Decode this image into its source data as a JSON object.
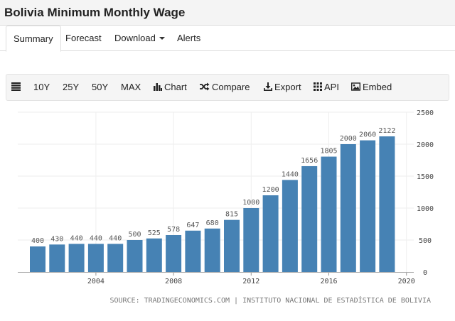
{
  "title": "Bolivia Minimum Monthly Wage",
  "tabs": [
    {
      "label": "Summary"
    },
    {
      "label": "Forecast"
    },
    {
      "label": "Download"
    },
    {
      "label": "Alerts"
    }
  ],
  "toolbar": {
    "range_10y": "10Y",
    "range_25y": "25Y",
    "range_50y": "50Y",
    "range_max": "MAX",
    "chart": "Chart",
    "compare": "Compare",
    "export": "Export",
    "api": "API",
    "embed": "Embed"
  },
  "source": "SOURCE: TRADINGECONOMICS.COM | INSTITUTO NACIONAL DE ESTADÍSTICA DE BOLIVIA",
  "colors": {
    "bar": "#4682b4",
    "accent": "#222222"
  },
  "chart_data": {
    "type": "bar",
    "title": "",
    "xlabel": "",
    "ylabel": "",
    "ylim": [
      0,
      2500
    ],
    "y_ticks": [
      "0",
      "500",
      "1000",
      "1500",
      "2000",
      "2500"
    ],
    "x_ticks": [
      "2004",
      "2008",
      "2012",
      "2016",
      "2020"
    ],
    "categories": [
      "2001",
      "2002",
      "2003",
      "2004",
      "2005",
      "2006",
      "2007",
      "2008",
      "2009",
      "2010",
      "2011",
      "2012",
      "2013",
      "2014",
      "2015",
      "2016",
      "2017",
      "2018",
      "2019"
    ],
    "values": [
      400,
      430,
      440,
      440,
      440,
      500,
      525,
      578,
      647,
      680,
      815,
      1000,
      1200,
      1440,
      1656,
      1805,
      2000,
      2060,
      2122
    ],
    "grid": true,
    "legend": "none"
  }
}
